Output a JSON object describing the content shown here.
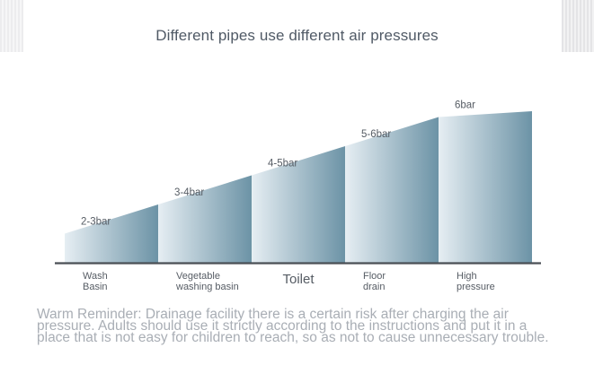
{
  "title": "Different pipes use different air pressures",
  "reminder": "Warm Reminder: Drainage facility there is a certain risk after charging the air pressure. Adults should use it strictly according to the instructions and put it in a place that is not easy for children to reach, so as not to cause unnecessary trouble.",
  "colors": {
    "bar_dark": "#6c93a6",
    "bar_light": "#e6eef3",
    "axis": "#4a4f55",
    "text": "#565c64"
  },
  "chart_data": {
    "type": "bar",
    "title": "Different pipes use different air pressures",
    "categories": [
      "Wash Basin",
      "Vegetable washing basin",
      "Toilet",
      "Floor drain",
      "High pressure"
    ],
    "category_lines": [
      [
        "Wash",
        "Basin"
      ],
      [
        "Vegetable",
        "washing basin"
      ],
      [
        "Toilet"
      ],
      [
        "Floor",
        "drain"
      ],
      [
        "High",
        "pressure"
      ]
    ],
    "value_labels": [
      "2-3bar",
      "3-4bar",
      "4-5bar",
      "5-6bar",
      "6bar"
    ],
    "ranges": [
      [
        2,
        3
      ],
      [
        3,
        4
      ],
      [
        4,
        5
      ],
      [
        5,
        6
      ],
      [
        6,
        6
      ]
    ],
    "unit": "bar",
    "xlabel": "",
    "ylabel": "",
    "grid": false,
    "legend": "none"
  }
}
